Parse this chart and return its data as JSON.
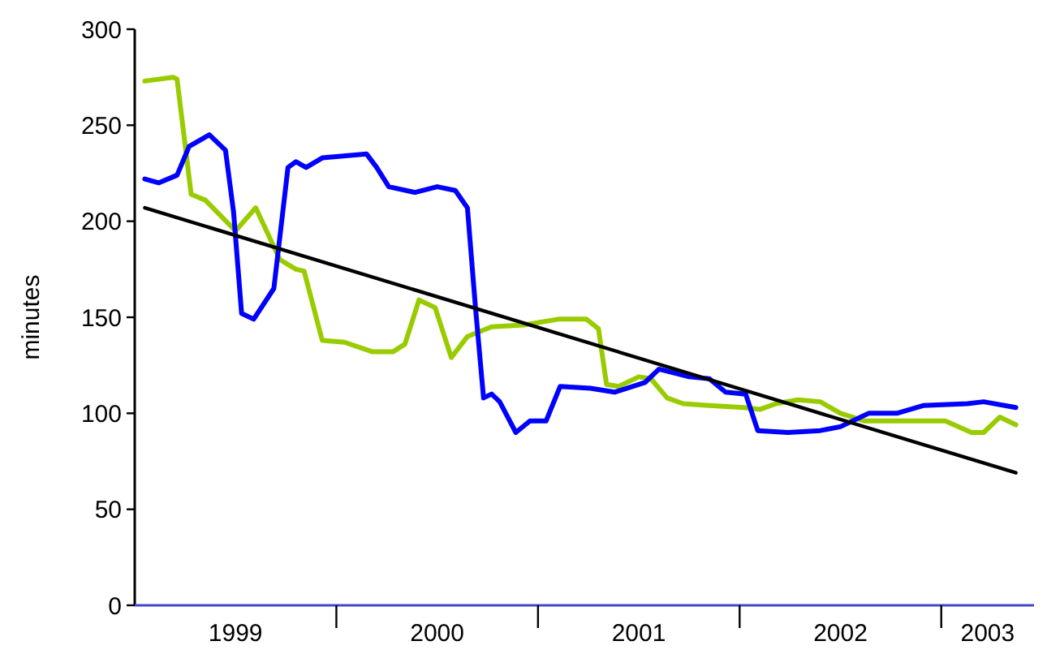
{
  "chart_data": {
    "type": "line",
    "ylabel": "minutes",
    "xlim": [
      1999.0,
      2003.46
    ],
    "ylim": [
      0,
      300
    ],
    "yticks": [
      0,
      50,
      100,
      150,
      200,
      250,
      300
    ],
    "xticks": [
      {
        "value": 1999.5,
        "label": "1999"
      },
      {
        "value": 2000.5,
        "label": "2000"
      },
      {
        "value": 2001.5,
        "label": "2001"
      },
      {
        "value": 2002.5,
        "label": "2002"
      },
      {
        "value": 2003.23,
        "label": "2003"
      },
      {
        "value": 2000,
        "label": null
      },
      {
        "value": 2001,
        "label": null
      },
      {
        "value": 2002,
        "label": null
      },
      {
        "value": 2003,
        "label": null
      }
    ],
    "grid": false,
    "marker": "none",
    "line_style": "solid",
    "series": [
      {
        "color": "#99cc00",
        "x": [
          1999.05,
          1999.19,
          1999.21,
          1999.28,
          1999.35,
          1999.5,
          1999.6,
          1999.72,
          1999.8,
          1999.84,
          1999.93,
          2000.04,
          2000.18,
          2000.28,
          2000.34,
          2000.41,
          2000.49,
          2000.57,
          2000.65,
          2000.77,
          2000.93,
          2001.1,
          2001.24,
          2001.3,
          2001.34,
          2001.4,
          2001.5,
          2001.56,
          2001.64,
          2001.72,
          2001.85,
          2002.02,
          2002.1,
          2002.18,
          2002.29,
          2002.4,
          2002.5,
          2002.62,
          2002.83,
          2003.02,
          2003.15,
          2003.21,
          2003.29,
          2003.37
        ],
        "values": [
          273,
          275,
          274,
          214,
          211,
          195,
          207,
          180,
          175,
          174,
          138,
          137,
          132,
          132,
          136,
          159,
          155,
          129,
          140,
          145,
          146,
          149,
          149,
          144,
          115,
          114,
          119,
          118,
          108,
          105,
          104,
          103,
          102,
          105,
          107,
          106,
          100,
          96,
          96,
          96,
          90,
          90,
          98,
          94
        ]
      },
      {
        "color": "#0000ff",
        "x": [
          1999.05,
          1999.12,
          1999.21,
          1999.27,
          1999.37,
          1999.45,
          1999.49,
          1999.53,
          1999.59,
          1999.69,
          1999.76,
          1999.8,
          1999.85,
          1999.93,
          2000.15,
          2000.2,
          2000.26,
          2000.39,
          2000.5,
          2000.59,
          2000.65,
          2000.69,
          2000.73,
          2000.77,
          2000.81,
          2000.89,
          2000.96,
          2001.04,
          2001.11,
          2001.26,
          2001.38,
          2001.53,
          2001.6,
          2001.75,
          2001.85,
          2001.93,
          2002.03,
          2002.09,
          2002.24,
          2002.4,
          2002.5,
          2002.64,
          2002.78,
          2002.91,
          2003.13,
          2003.21,
          2003.37
        ],
        "values": [
          222,
          220,
          224,
          239,
          245,
          237,
          205,
          152,
          149,
          165,
          228,
          231,
          228,
          233,
          235,
          228,
          218,
          215,
          218,
          216,
          207,
          155,
          108,
          110,
          106,
          90,
          96,
          96,
          114,
          113,
          111,
          116,
          123,
          119,
          118,
          111,
          110,
          91,
          90,
          91,
          93,
          100,
          100,
          104,
          105,
          106,
          103
        ]
      },
      {
        "color": "#000000",
        "x": [
          1999.05,
          2003.37
        ],
        "values": [
          207,
          69
        ]
      }
    ]
  }
}
